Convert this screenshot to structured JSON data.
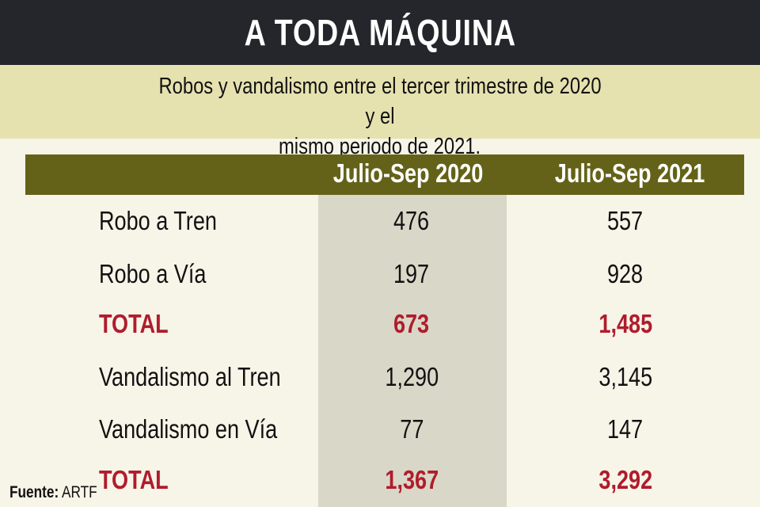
{
  "title": "A TODA  MÁQUINA",
  "subtitle_line1": "Robos y vandalismo entre el tercer trimestre de 2020 y el",
  "subtitle_line2": "mismo periodo de 2021.",
  "colors": {
    "header": "#24262b",
    "subtitle_band": "#e6e2b0",
    "column_bar": "#646218",
    "highlight_column": "#d9d7c8",
    "total": "#b01c2c"
  },
  "source_label": "Fuente:",
  "source_value": "ARTF",
  "chart_data": {
    "type": "table",
    "columns": [
      "Julio-Sep 2020",
      "Julio-Sep 2021"
    ],
    "rows": [
      {
        "label": "Robo a Tren",
        "values": [
          "476",
          "557"
        ],
        "total": false
      },
      {
        "label": "Robo a Vía",
        "values": [
          "197",
          "928"
        ],
        "total": false
      },
      {
        "label": "TOTAL",
        "values": [
          "673",
          "1,485"
        ],
        "total": true
      },
      {
        "label": "Vandalismo al Tren",
        "values": [
          "1,290",
          "3,145"
        ],
        "total": false
      },
      {
        "label": "Vandalismo en Vía",
        "values": [
          "77",
          "147"
        ],
        "total": false
      },
      {
        "label": "TOTAL",
        "values": [
          "1,367",
          "3,292"
        ],
        "total": true
      }
    ]
  }
}
